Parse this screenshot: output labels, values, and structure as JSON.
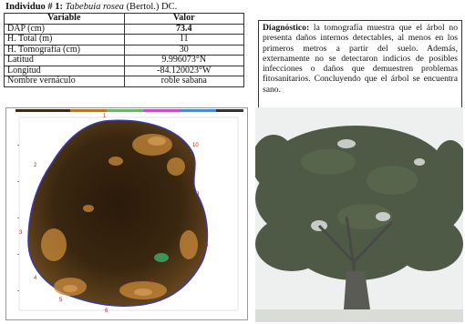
{
  "header": {
    "prefix": "Individuo # 1:",
    "species": "Tabebuia rosea",
    "authority": "(Bertol.) DC."
  },
  "table": {
    "col_variable": "Variable",
    "col_valor": "Valor",
    "rows": [
      {
        "variable": "DAP (cm)",
        "valor": "73.4"
      },
      {
        "variable": "H. Total (m)",
        "valor": "11"
      },
      {
        "variable": "H. Tomografía (cm)",
        "valor": "30"
      },
      {
        "variable": "Latitud",
        "valor": "9.996073°N"
      },
      {
        "variable": "Longitud",
        "valor": "-84.120023°W"
      },
      {
        "variable": "Nombre vernáculo",
        "valor": "roble sabana"
      }
    ]
  },
  "diagnostico": {
    "label": "Diagnóstico:",
    "text": " la tomografía muestra que el árbol no presenta daños internos detectables, al menos en los primeros metros a partir del suelo. Además, externamente no se detectaron indicios de posibles infecciones o daños que demuestren problemas fitosanitarios. Concluyendo que el árbol se encuentra sano."
  },
  "tomography": {
    "sensor_labels": [
      "1",
      "2",
      "3",
      "4",
      "5",
      "6",
      "7",
      "8",
      "9",
      "10"
    ],
    "colors": {
      "dark": "#1c1208",
      "mid": "#5a3c18",
      "light": "#c98a3a",
      "outline": "#3a3aa8"
    }
  },
  "photo": {
    "colors": {
      "sky": "#eef0f0",
      "foliage": "#3d4a34",
      "trunk": "#5b5b55"
    }
  }
}
